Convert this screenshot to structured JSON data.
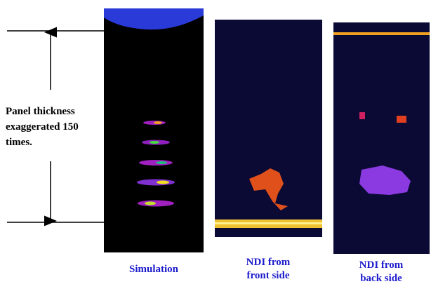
{
  "annotation": {
    "lines": [
      "Panel thickness",
      "exaggerated 150",
      "times."
    ]
  },
  "captions": [
    {
      "lines": [
        "Simulation"
      ]
    },
    {
      "lines": [
        "NDI from",
        "front side"
      ]
    },
    {
      "lines": [
        "NDI from",
        "back side"
      ]
    }
  ]
}
